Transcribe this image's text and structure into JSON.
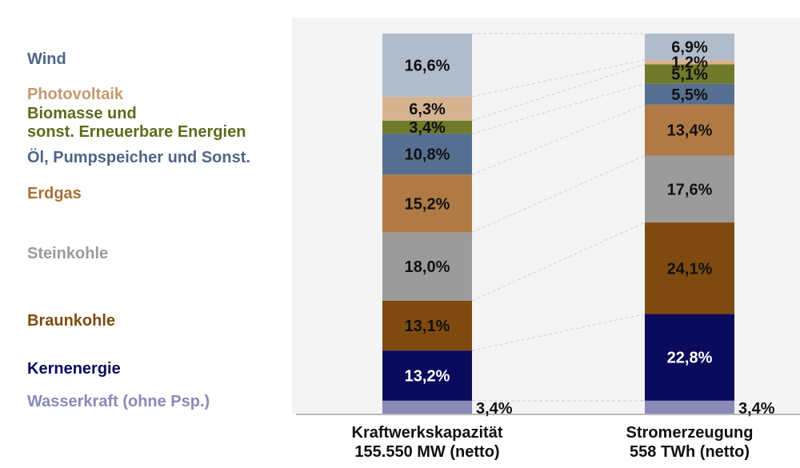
{
  "chart_data": {
    "type": "bar",
    "stacked": true,
    "normalized_percent": true,
    "categories": [
      "Kraftwerkskapazität\n155.550 MW (netto)",
      "Stromerzeugung\n558 TWh (netto)"
    ],
    "category_lines": [
      [
        "Kraftwerkskapazität",
        "155.550 MW (netto)"
      ],
      [
        "Stromerzeugung",
        "558 TWh (netto)"
      ]
    ],
    "series": [
      {
        "name": "Wasserkraft (ohne Psp.)",
        "color": "#8b89b8",
        "values": [
          3.4,
          3.4
        ],
        "labels": [
          "3,4%",
          "3,4%"
        ]
      },
      {
        "name": "Kernenergie",
        "color": "#0b0b5e",
        "values": [
          13.2,
          22.8
        ],
        "labels": [
          "13,2%",
          "22,8%"
        ]
      },
      {
        "name": "Braunkohle",
        "color": "#7f4a10",
        "values": [
          13.1,
          24.1
        ],
        "labels": [
          "13,1%",
          "24,1%"
        ]
      },
      {
        "name": "Steinkohle",
        "color": "#9b9b9b",
        "values": [
          18.0,
          17.6
        ],
        "labels": [
          "18,0%",
          "17,6%"
        ]
      },
      {
        "name": "Erdgas",
        "color": "#b07a45",
        "values": [
          15.2,
          13.4
        ],
        "labels": [
          "15,2%",
          "13,4%"
        ]
      },
      {
        "name": "Öl, Pumpspeicher und Sonst.",
        "color": "#566f91",
        "values": [
          10.8,
          5.5
        ],
        "labels": [
          "10,8%",
          "5,5%"
        ]
      },
      {
        "name": "Biomasse und\nsonst. Erneuerbare Energien",
        "color": "#6f7a2a",
        "values": [
          3.4,
          5.1
        ],
        "labels": [
          "3,4%",
          "5,1%"
        ]
      },
      {
        "name": "Photovoltaik",
        "color": "#d5b290",
        "values": [
          6.3,
          1.2
        ],
        "labels": [
          "6,3%",
          "1,2%"
        ]
      },
      {
        "name": "Wind",
        "color": "#b1bccb",
        "values": [
          16.6,
          6.9
        ],
        "labels": [
          "16,6%",
          "6,9%"
        ]
      }
    ],
    "legend_placement": "left",
    "legend_text_colors": {
      "Wind": "#4f6587",
      "Photovoltaik": "#c49a70",
      "Biomasse und\nsonst. Erneuerbare Energien": "#5e6b1c",
      "Öl, Pumpspeicher und Sonst.": "#4f6587",
      "Erdgas": "#a8703a",
      "Steinkohle": "#9b9b9b",
      "Braunkohle": "#7f4a10",
      "Kernenergie": "#0b0b5e",
      "Wasserkraft (ohne Psp.)": "#8b89b8"
    },
    "plot_background": "#f4f4f4",
    "grid": false,
    "connector_lines": true
  }
}
